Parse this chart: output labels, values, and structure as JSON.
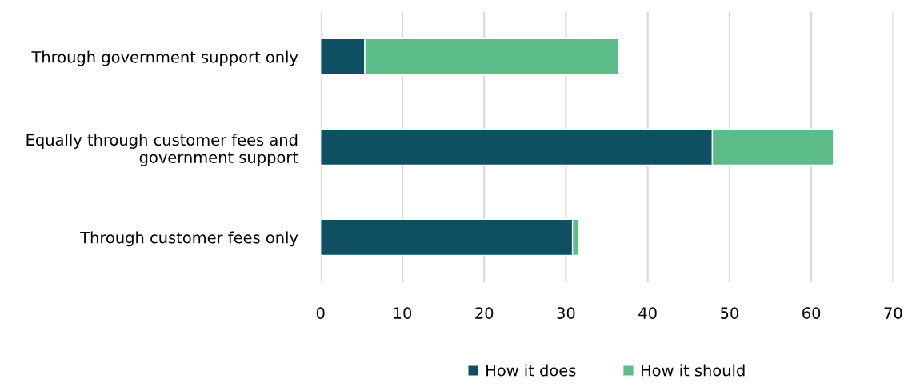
{
  "chart_data": {
    "type": "bar",
    "orientation": "horizontal",
    "stacked": true,
    "categories": [
      "Through government support only",
      "Equally through customer fees and\ngovernment support",
      "Through customer fees only"
    ],
    "series": [
      {
        "name": "How it does",
        "color": "#0e4f62",
        "values": [
          5.4,
          47.9,
          30.8
        ]
      },
      {
        "name": "How it should",
        "color": "#5dbd8a",
        "values": [
          31.0,
          14.8,
          0.8
        ]
      }
    ],
    "xlim": [
      0,
      70
    ],
    "xticks": [
      0,
      10,
      20,
      30,
      40,
      50,
      60,
      70
    ],
    "grid": "x",
    "legend": "bottom"
  }
}
